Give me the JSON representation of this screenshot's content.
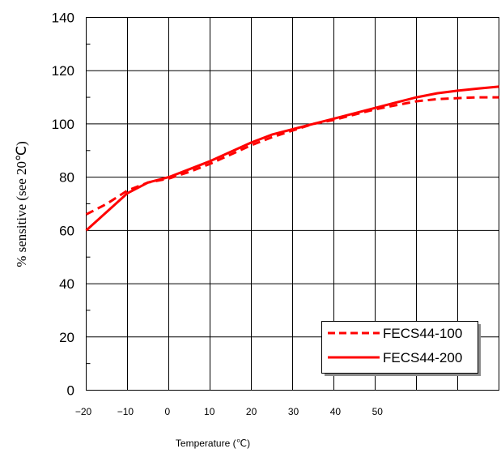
{
  "chart_data": {
    "type": "line",
    "xlabel": "Temperature (℃)",
    "ylabel": "% sensitive (see 20℃)",
    "xlim": [
      -20,
      80
    ],
    "ylim": [
      0,
      140
    ],
    "x_ticks": [
      -20,
      -10,
      0,
      10,
      20,
      30,
      40,
      50
    ],
    "x_tick_labels": [
      "−20",
      "−10",
      "0",
      "10",
      "20",
      "30",
      "40",
      "50"
    ],
    "y_ticks": [
      0,
      20,
      40,
      60,
      80,
      100,
      120,
      140
    ],
    "y_tick_labels": [
      "0",
      "20",
      "40",
      "60",
      "80",
      "100",
      "120",
      "140"
    ],
    "grid": true,
    "legend_position": "bottom-right",
    "series": [
      {
        "name": "FECS44-100",
        "style": "dashed",
        "color": "#ff0000",
        "x": [
          -20,
          -15,
          -10,
          -5,
          0,
          5,
          10,
          15,
          20,
          25,
          30,
          35,
          40,
          45,
          50,
          55,
          60,
          65,
          70,
          75,
          80
        ],
        "y": [
          66,
          70,
          75,
          78,
          79.5,
          82,
          85,
          88.5,
          92,
          95,
          97.5,
          100,
          101.5,
          103.5,
          105.5,
          107,
          108.5,
          109.3,
          109.7,
          110,
          110
        ]
      },
      {
        "name": "FECS44-200",
        "style": "solid",
        "color": "#ff0000",
        "x": [
          -20,
          -15,
          -10,
          -5,
          0,
          5,
          10,
          15,
          20,
          25,
          30,
          35,
          40,
          45,
          50,
          55,
          60,
          65,
          70,
          75,
          80
        ],
        "y": [
          60,
          67,
          74,
          78,
          80,
          83,
          86,
          89.5,
          93,
          96,
          98,
          100,
          102,
          104,
          106,
          108,
          110,
          111.5,
          112.5,
          113.3,
          114
        ]
      }
    ]
  }
}
